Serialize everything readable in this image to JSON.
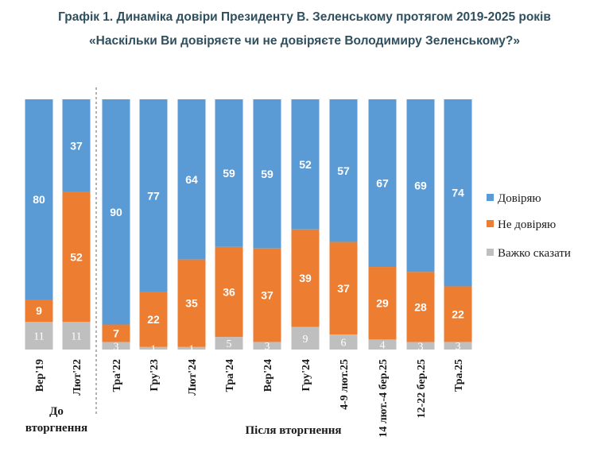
{
  "title_line1": "Графік 1. Динаміка довіри Президенту В. Зеленському протягом 2019-2025 років",
  "title_line2": "«Наскільки Ви довіряєте чи не довіряєте Володимиру Зеленському?»",
  "colors": {
    "trust": "#5b9bd5",
    "distrust": "#ed7d31",
    "hard": "#bfbfbf"
  },
  "chart_data": {
    "type": "bar",
    "stacked": true,
    "normalized_100": true,
    "categories": [
      "Вер'19",
      "Лют'22",
      "Тра'22",
      "Гру'23",
      "Лют'24",
      "Тра'24",
      "Вер'24",
      "Гру'24",
      "4-9 лют.25",
      "14 лют.-4 бер.25",
      "12-22 бер.25",
      "Тра.25"
    ],
    "series": [
      {
        "name": "Довіряю",
        "values": [
          80,
          37,
          90,
          77,
          64,
          59,
          59,
          52,
          57,
          67,
          69,
          74
        ]
      },
      {
        "name": "Не довіряю",
        "values": [
          9,
          52,
          7,
          22,
          35,
          36,
          37,
          39,
          37,
          29,
          28,
          22
        ]
      },
      {
        "name": "Важко сказати",
        "values": [
          11,
          11,
          3,
          1,
          1,
          5,
          3,
          9,
          6,
          4,
          3,
          3
        ]
      }
    ],
    "groups": [
      {
        "label_line1": "До",
        "label_line2": "вторгнення",
        "count": 2
      },
      {
        "label": "Після вторгнення",
        "count": 10
      }
    ],
    "legend_position": "right",
    "grid": false
  }
}
